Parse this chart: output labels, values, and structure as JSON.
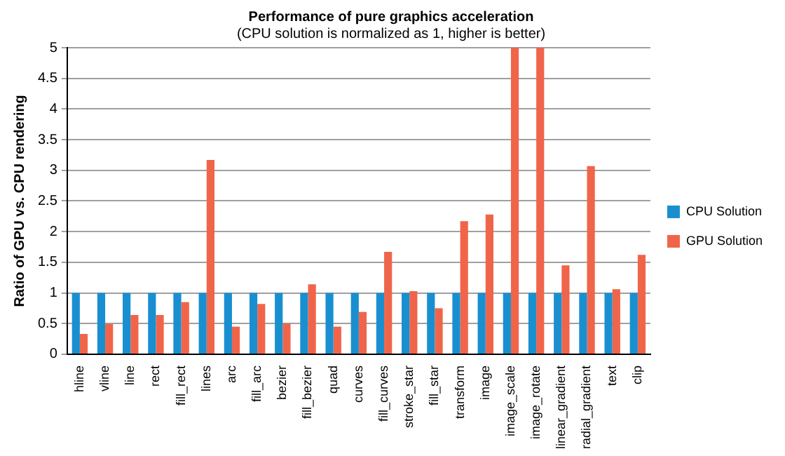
{
  "chart_data": {
    "type": "bar",
    "title": "Performance of pure graphics acceleration",
    "subtitle": "(CPU solution is normalized as 1, higher is better)",
    "ylabel": "Ratio of GPU vs. CPU rendering",
    "categories": [
      "hline",
      "vline",
      "line",
      "rect",
      "fill_rect",
      "lines",
      "arc",
      "fill_arc",
      "bezier",
      "fill_bezier",
      "quad",
      "curves",
      "fill_curves",
      "stroke_star",
      "fill_star",
      "transform",
      "image",
      "image_scale",
      "image_rotate",
      "linear_gradient",
      "radial_gradient",
      "text",
      "clip"
    ],
    "series": [
      {
        "name": "CPU Solution",
        "color": "#1a8fd0",
        "values": [
          1,
          1,
          1,
          1,
          1,
          1,
          1,
          1,
          1,
          1,
          1,
          1,
          1,
          1,
          1,
          1,
          1,
          1,
          1,
          1,
          1,
          1,
          1
        ]
      },
      {
        "name": "GPU Solution",
        "color": "#f0654a",
        "values": [
          0.33,
          0.49,
          0.64,
          0.64,
          0.85,
          3.17,
          0.45,
          0.82,
          0.5,
          1.14,
          0.45,
          0.69,
          1.67,
          1.03,
          0.75,
          2.17,
          2.28,
          5,
          5,
          1.45,
          3.07,
          1.06,
          1.62
        ]
      }
    ],
    "ylim": [
      0,
      5
    ],
    "yticks": [
      0,
      0.5,
      1,
      1.5,
      2,
      2.5,
      3,
      3.5,
      4,
      4.5,
      5
    ],
    "grid": "y",
    "legend": "right"
  }
}
